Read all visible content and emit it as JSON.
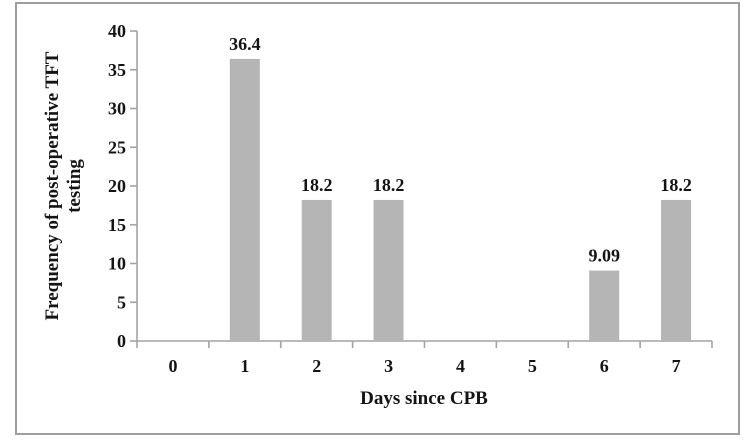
{
  "chart_data": {
    "type": "bar",
    "title": "",
    "categories": [
      "0",
      "1",
      "2",
      "3",
      "4",
      "5",
      "6",
      "7"
    ],
    "values": [
      0,
      36.4,
      18.2,
      18.2,
      0,
      0,
      9.09,
      18.2
    ],
    "bar_labels": [
      "",
      "36.4",
      "18.2",
      "18.2",
      "",
      "",
      "9.09",
      "18.2"
    ],
    "xlabel": "Days since CPB",
    "ylabel": "Frequency of post-operative TFT testing",
    "ylabel_lines": [
      "Frequency of post-operative TFT",
      "testing"
    ],
    "ylim": [
      0,
      40
    ],
    "yticks": [
      0,
      5,
      10,
      15,
      20,
      25,
      30,
      35,
      40
    ],
    "grid": false,
    "legend": "none",
    "colors": {
      "bar": "#b5b5b5",
      "axis": "#a3a3a3",
      "frame_border": "#9e9e9e",
      "text": "#141414",
      "background": "#ffffff"
    }
  }
}
